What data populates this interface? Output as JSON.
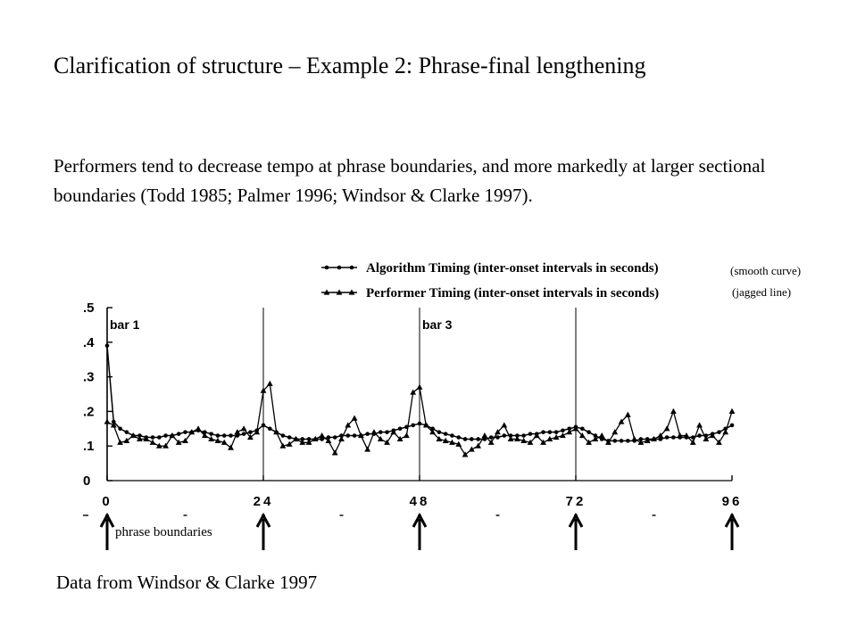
{
  "slide": {
    "title": "Clarification of structure – Example 2: Phrase-final lengthening",
    "body": "Performers tend to decrease tempo at phrase boundaries, and more markedly at larger sectional boundaries (Todd 1985; Palmer 1996; Windsor & Clarke 1997).",
    "source": "Data from Windsor & Clarke 1997"
  },
  "annotations": {
    "smooth": "(smooth curve)",
    "jagged": "(jagged line)",
    "phrase_boundaries": "phrase boundaries"
  },
  "chart_data": {
    "type": "line",
    "x_ticks": [
      0,
      24,
      48,
      72,
      96
    ],
    "x_tick_labels": [
      "0",
      "24",
      "48",
      "72",
      "96"
    ],
    "y_ticks": [
      0,
      0.1,
      0.2,
      0.3,
      0.4,
      0.5
    ],
    "y_tick_labels": [
      "0",
      ".1",
      ".2",
      ".3",
      ".4",
      ".5"
    ],
    "xlim": [
      0,
      96
    ],
    "ylim": [
      0,
      0.5
    ],
    "grid": "vertical lines at 24, 48, 72",
    "bar_labels": [
      {
        "text": "bar 1",
        "x": 0
      },
      {
        "text": "bar 3",
        "x": 48
      }
    ],
    "phrase_boundaries": [
      0,
      24,
      48,
      72,
      96
    ],
    "legend_position": "top-right",
    "series": [
      {
        "name": "Algorithm Timing (inter-onset intervals in seconds)",
        "marker": "circle",
        "color": "#000000",
        "x": [
          0,
          1,
          2,
          3,
          4,
          5,
          6,
          7,
          8,
          9,
          10,
          11,
          12,
          13,
          14,
          15,
          16,
          17,
          18,
          19,
          20,
          21,
          22,
          23,
          24,
          25,
          26,
          27,
          28,
          29,
          30,
          31,
          32,
          33,
          34,
          35,
          36,
          37,
          38,
          39,
          40,
          41,
          42,
          43,
          44,
          45,
          46,
          47,
          48,
          49,
          50,
          51,
          52,
          53,
          54,
          55,
          56,
          57,
          58,
          59,
          60,
          61,
          62,
          63,
          64,
          65,
          66,
          67,
          68,
          69,
          70,
          71,
          72,
          73,
          74,
          75,
          76,
          77,
          78,
          79,
          80,
          81,
          82,
          83,
          84,
          85,
          86,
          87,
          88,
          89,
          90,
          91,
          92,
          93,
          94,
          95,
          96
        ],
        "y": [
          0.39,
          0.17,
          0.15,
          0.14,
          0.13,
          0.13,
          0.125,
          0.125,
          0.125,
          0.13,
          0.13,
          0.135,
          0.14,
          0.14,
          0.145,
          0.14,
          0.135,
          0.13,
          0.13,
          0.13,
          0.13,
          0.135,
          0.14,
          0.145,
          0.16,
          0.15,
          0.14,
          0.13,
          0.125,
          0.12,
          0.12,
          0.12,
          0.12,
          0.12,
          0.125,
          0.125,
          0.13,
          0.13,
          0.13,
          0.13,
          0.135,
          0.135,
          0.14,
          0.14,
          0.145,
          0.15,
          0.155,
          0.16,
          0.165,
          0.16,
          0.15,
          0.14,
          0.135,
          0.13,
          0.125,
          0.12,
          0.12,
          0.12,
          0.12,
          0.125,
          0.125,
          0.13,
          0.13,
          0.13,
          0.13,
          0.135,
          0.135,
          0.14,
          0.14,
          0.14,
          0.145,
          0.15,
          0.155,
          0.15,
          0.14,
          0.13,
          0.12,
          0.115,
          0.115,
          0.115,
          0.115,
          0.115,
          0.12,
          0.12,
          0.12,
          0.12,
          0.125,
          0.125,
          0.125,
          0.125,
          0.125,
          0.13,
          0.13,
          0.135,
          0.14,
          0.15,
          0.16
        ]
      },
      {
        "name": "Performer Timing (inter-onset intervals in seconds)",
        "marker": "triangle",
        "color": "#000000",
        "x": [
          0,
          1,
          2,
          3,
          4,
          5,
          6,
          7,
          8,
          9,
          10,
          11,
          12,
          13,
          14,
          15,
          16,
          17,
          18,
          19,
          20,
          21,
          22,
          23,
          24,
          25,
          26,
          27,
          28,
          29,
          30,
          31,
          32,
          33,
          34,
          35,
          36,
          37,
          38,
          39,
          40,
          41,
          42,
          43,
          44,
          45,
          46,
          47,
          48,
          49,
          50,
          51,
          52,
          53,
          54,
          55,
          56,
          57,
          58,
          59,
          60,
          61,
          62,
          63,
          64,
          65,
          66,
          67,
          68,
          69,
          70,
          71,
          72,
          73,
          74,
          75,
          76,
          77,
          78,
          79,
          80,
          81,
          82,
          83,
          84,
          85,
          86,
          87,
          88,
          89,
          90,
          91,
          92,
          93,
          94,
          95,
          96
        ],
        "y": [
          0.17,
          0.16,
          0.11,
          0.115,
          0.13,
          0.12,
          0.12,
          0.11,
          0.1,
          0.1,
          0.13,
          0.11,
          0.115,
          0.14,
          0.15,
          0.13,
          0.12,
          0.115,
          0.11,
          0.095,
          0.14,
          0.15,
          0.125,
          0.14,
          0.26,
          0.28,
          0.14,
          0.1,
          0.105,
          0.12,
          0.11,
          0.11,
          0.12,
          0.13,
          0.115,
          0.08,
          0.12,
          0.16,
          0.18,
          0.13,
          0.09,
          0.14,
          0.12,
          0.11,
          0.14,
          0.12,
          0.13,
          0.255,
          0.27,
          0.16,
          0.14,
          0.12,
          0.115,
          0.11,
          0.105,
          0.075,
          0.09,
          0.1,
          0.13,
          0.11,
          0.14,
          0.16,
          0.12,
          0.12,
          0.115,
          0.11,
          0.13,
          0.11,
          0.12,
          0.125,
          0.13,
          0.14,
          0.15,
          0.13,
          0.11,
          0.12,
          0.13,
          0.11,
          0.14,
          0.17,
          0.19,
          0.12,
          0.11,
          0.115,
          0.12,
          0.13,
          0.15,
          0.2,
          0.13,
          0.13,
          0.11,
          0.16,
          0.12,
          0.13,
          0.11,
          0.14,
          0.2
        ]
      }
    ]
  }
}
